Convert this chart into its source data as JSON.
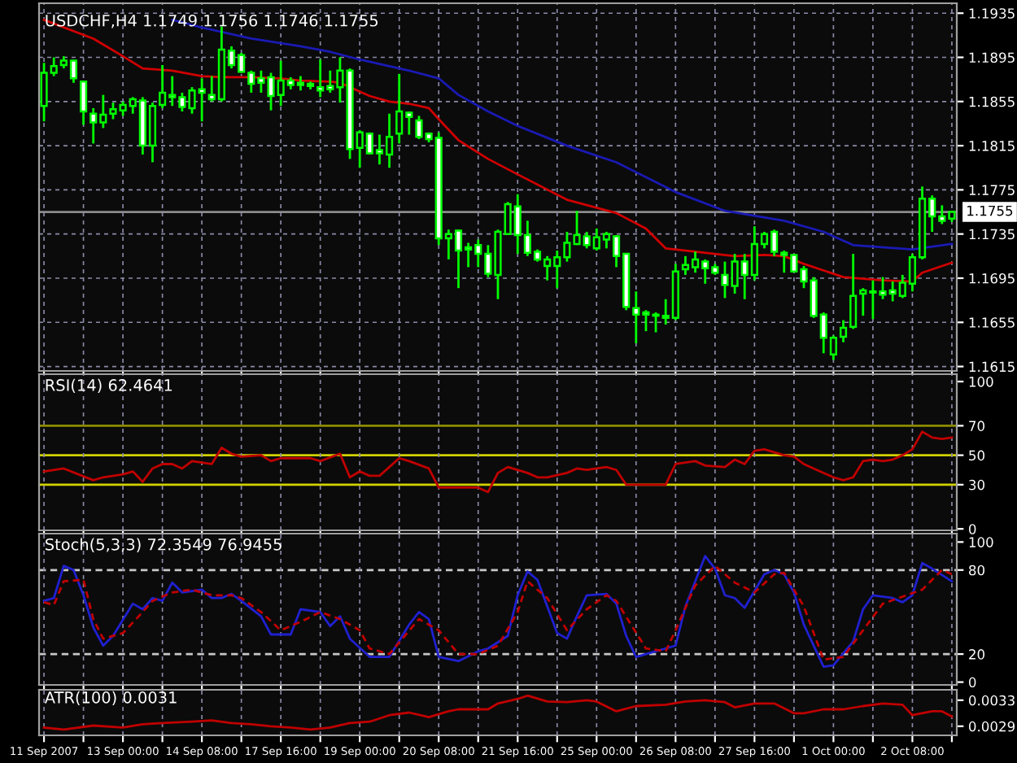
{
  "chart_data": [
    {
      "type": "candlestick",
      "title": "USDCHF,H4 1.1749 1.1756 1.1746 1.1755",
      "color": "#00ff00",
      "ohlc": [
        [
          1.1851,
          1.189,
          1.1837,
          1.1881
        ],
        [
          1.1881,
          1.1895,
          1.1878,
          1.1887
        ],
        [
          1.1888,
          1.1896,
          1.1885,
          1.1892
        ],
        [
          1.1892,
          1.1893,
          1.1872,
          1.1876
        ],
        [
          1.1873,
          1.1873,
          1.1834,
          1.1846
        ],
        [
          1.1844,
          1.1849,
          1.1817,
          1.1836
        ],
        [
          1.1836,
          1.1861,
          1.1831,
          1.1843
        ],
        [
          1.1844,
          1.1854,
          1.1839,
          1.1848
        ],
        [
          1.1847,
          1.1855,
          1.1842,
          1.1852
        ],
        [
          1.1851,
          1.1859,
          1.1844,
          1.1857
        ],
        [
          1.1856,
          1.1859,
          1.1807,
          1.1815
        ],
        [
          1.1815,
          1.1854,
          1.18,
          1.1851
        ],
        [
          1.1852,
          1.1888,
          1.1849,
          1.1863
        ],
        [
          1.1861,
          1.1878,
          1.1851,
          1.1859
        ],
        [
          1.1859,
          1.1863,
          1.1846,
          1.185
        ],
        [
          1.1849,
          1.1868,
          1.1844,
          1.1865
        ],
        [
          1.1866,
          1.1876,
          1.1837,
          1.1863
        ],
        [
          1.1861,
          1.1878,
          1.1855,
          1.1857
        ],
        [
          1.1857,
          1.1923,
          1.1855,
          1.1902
        ],
        [
          1.1901,
          1.1905,
          1.1885,
          1.1888
        ],
        [
          1.1897,
          1.1899,
          1.1881,
          1.1882
        ],
        [
          1.1881,
          1.1883,
          1.1863,
          1.1871
        ],
        [
          1.1876,
          1.1883,
          1.1863,
          1.1872
        ],
        [
          1.1877,
          1.1881,
          1.1847,
          1.186
        ],
        [
          1.1861,
          1.1892,
          1.1851,
          1.1874
        ],
        [
          1.1874,
          1.1877,
          1.1866,
          1.187
        ],
        [
          1.1872,
          1.1878,
          1.1865,
          1.187
        ],
        [
          1.1871,
          1.1873,
          1.1866,
          1.1869
        ],
        [
          1.1868,
          1.1893,
          1.1859,
          1.1865
        ],
        [
          1.1869,
          1.1883,
          1.1863,
          1.1866
        ],
        [
          1.1868,
          1.1895,
          1.1854,
          1.1883
        ],
        [
          1.1883,
          1.1885,
          1.1803,
          1.1812
        ],
        [
          1.1813,
          1.1829,
          1.1795,
          1.1827
        ],
        [
          1.1826,
          1.1827,
          1.1807,
          1.1808
        ],
        [
          1.1811,
          1.1825,
          1.1798,
          1.1808
        ],
        [
          1.1807,
          1.1844,
          1.1795,
          1.1823
        ],
        [
          1.1826,
          1.188,
          1.1817,
          1.1846
        ],
        [
          1.1845,
          1.1846,
          1.1825,
          1.1841
        ],
        [
          1.1838,
          1.1842,
          1.1821,
          1.1823
        ],
        [
          1.1826,
          1.1827,
          1.1818,
          1.1821
        ],
        [
          1.1822,
          1.1827,
          1.1725,
          1.1731
        ],
        [
          1.1731,
          1.1739,
          1.1712,
          1.1735
        ],
        [
          1.1738,
          1.1739,
          1.1686,
          1.172
        ],
        [
          1.1723,
          1.1727,
          1.1705,
          1.1721
        ],
        [
          1.1725,
          1.173,
          1.1705,
          1.1717
        ],
        [
          1.1717,
          1.1725,
          1.1696,
          1.1699
        ],
        [
          1.1698,
          1.1739,
          1.1676,
          1.1737
        ],
        [
          1.1735,
          1.1764,
          1.1734,
          1.1762
        ],
        [
          1.176,
          1.1771,
          1.1717,
          1.1734
        ],
        [
          1.1734,
          1.1747,
          1.1715,
          1.1718
        ],
        [
          1.1719,
          1.1721,
          1.171,
          1.1712
        ],
        [
          1.1706,
          1.1715,
          1.1693,
          1.1712
        ],
        [
          1.1706,
          1.172,
          1.1686,
          1.1714
        ],
        [
          1.1714,
          1.1737,
          1.171,
          1.1727
        ],
        [
          1.1726,
          1.1756,
          1.1725,
          1.1734
        ],
        [
          1.1733,
          1.1737,
          1.1722,
          1.1725
        ],
        [
          1.1722,
          1.174,
          1.172,
          1.1732
        ],
        [
          1.173,
          1.1737,
          1.1722,
          1.1735
        ],
        [
          1.1733,
          1.1734,
          1.1705,
          1.1715
        ],
        [
          1.1717,
          1.1717,
          1.1666,
          1.1669
        ],
        [
          1.1668,
          1.1683,
          1.1636,
          1.1662
        ],
        [
          1.1664,
          1.1666,
          1.1647,
          1.1662
        ],
        [
          1.1662,
          1.1664,
          1.1646,
          1.1661
        ],
        [
          1.1659,
          1.1676,
          1.1653,
          1.1661
        ],
        [
          1.1659,
          1.1708,
          1.1657,
          1.1701
        ],
        [
          1.1703,
          1.1715,
          1.1698,
          1.1707
        ],
        [
          1.1705,
          1.1719,
          1.17,
          1.1712
        ],
        [
          1.171,
          1.1712,
          1.169,
          1.1704
        ],
        [
          1.1705,
          1.1708,
          1.1698,
          1.17
        ],
        [
          1.1698,
          1.171,
          1.1677,
          1.1689
        ],
        [
          1.1688,
          1.1717,
          1.1681,
          1.171
        ],
        [
          1.171,
          1.1717,
          1.1676,
          1.1698
        ],
        [
          1.1698,
          1.1742,
          1.1693,
          1.1726
        ],
        [
          1.1726,
          1.1737,
          1.1722,
          1.1735
        ],
        [
          1.1737,
          1.1739,
          1.1715,
          1.1719
        ],
        [
          1.1718,
          1.172,
          1.17,
          1.1716
        ],
        [
          1.1716,
          1.1717,
          1.17,
          1.1701
        ],
        [
          1.1703,
          1.1706,
          1.1686,
          1.1692
        ],
        [
          1.1693,
          1.1696,
          1.1659,
          1.1661
        ],
        [
          1.1662,
          1.1664,
          1.1627,
          1.1641
        ],
        [
          1.1626,
          1.1643,
          1.1621,
          1.1641
        ],
        [
          1.1642,
          1.1657,
          1.1637,
          1.165
        ],
        [
          1.1651,
          1.1717,
          1.1649,
          1.1679
        ],
        [
          1.1681,
          1.1686,
          1.1661,
          1.1684
        ],
        [
          1.1683,
          1.1693,
          1.1658,
          1.1682
        ],
        [
          1.1683,
          1.1696,
          1.1676,
          1.168
        ],
        [
          1.1684,
          1.1692,
          1.1674,
          1.1681
        ],
        [
          1.1679,
          1.1698,
          1.1677,
          1.1691
        ],
        [
          1.169,
          1.1717,
          1.1683,
          1.1714
        ],
        [
          1.1714,
          1.1778,
          1.1712,
          1.1767
        ],
        [
          1.1767,
          1.177,
          1.1737,
          1.1751
        ],
        [
          1.1751,
          1.1761,
          1.1744,
          1.1747
        ],
        [
          1.1749,
          1.1756,
          1.1746,
          1.1755
        ]
      ],
      "series": [
        {
          "type": "line",
          "color": "#d00000",
          "values": [
            1.1929,
            null,
            null,
            null,
            null,
            1.1912,
            null,
            null,
            1.1896,
            null,
            1.1885,
            null,
            null,
            1.1883,
            null,
            null,
            1.1878,
            null,
            1.1877,
            null,
            null,
            1.1877,
            null,
            null,
            1.1876,
            null,
            1.1874,
            null,
            null,
            1.1873,
            1.1872,
            null,
            null,
            1.186,
            null,
            1.1855,
            null,
            1.1853,
            null,
            1.1849,
            1.1839,
            null,
            1.182,
            null,
            null,
            1.1803,
            null,
            null,
            1.1789,
            null,
            null,
            null,
            null,
            1.1766,
            null,
            null,
            null,
            null,
            1.1754,
            null,
            null,
            1.174,
            null,
            1.1722,
            null,
            null,
            1.1719,
            null,
            null,
            null,
            1.1715,
            null,
            null,
            1.1716,
            null,
            1.1715,
            null,
            1.1708,
            null,
            null,
            null,
            1.1696,
            null,
            null,
            null,
            1.1693,
            null,
            null,
            1.1692,
            1.17,
            null,
            null,
            1.1709
          ]
        },
        {
          "type": "line",
          "color": "#1a1ab4",
          "values": [
            null,
            null,
            null,
            null,
            null,
            null,
            null,
            null,
            null,
            null,
            null,
            null,
            null,
            1.1929,
            null,
            null,
            1.1922,
            null,
            null,
            null,
            null,
            1.1912,
            null,
            null,
            null,
            null,
            1.1905,
            null,
            null,
            1.19,
            null,
            null,
            1.1893,
            null,
            null,
            null,
            null,
            1.1883,
            null,
            null,
            1.1876,
            null,
            1.1861,
            null,
            null,
            1.1846,
            null,
            null,
            1.1833,
            null,
            null,
            null,
            null,
            1.1815,
            null,
            null,
            null,
            null,
            1.18,
            null,
            null,
            null,
            null,
            null,
            1.1773,
            null,
            null,
            null,
            null,
            1.1756,
            null,
            null,
            null,
            null,
            null,
            1.1747,
            null,
            null,
            null,
            1.1737,
            null,
            null,
            1.1725,
            null,
            null,
            null,
            null,
            null,
            1.1721,
            null,
            null,
            null,
            1.1726
          ]
        }
      ],
      "ylim": [
        1.1611,
        1.1944
      ],
      "yticks": [
        1.1615,
        1.1655,
        1.1695,
        1.1735,
        1.1775,
        1.1815,
        1.1855,
        1.1895,
        1.1935
      ],
      "tick_labels": "y",
      "grid": true,
      "ref_lines": [
        {
          "axis": "y",
          "value": 1.1755,
          "label": "1.1755",
          "color": "#8c8c8c"
        }
      ]
    },
    {
      "type": "line",
      "title": "RSI(14) 62.4641",
      "series": [
        {
          "color": "#c00000",
          "values": [
            39,
            null,
            41,
            null,
            null,
            33,
            35,
            null,
            37,
            39,
            32,
            41,
            44,
            44,
            41,
            46,
            45,
            44,
            55,
            51,
            49,
            null,
            50,
            46,
            48,
            48,
            null,
            48,
            46,
            null,
            51,
            35,
            39,
            36,
            36,
            42,
            48,
            46,
            null,
            41,
            28,
            null,
            28,
            null,
            28,
            25,
            38,
            42,
            null,
            38,
            35,
            35,
            null,
            38,
            41,
            40,
            null,
            42,
            40,
            30,
            null,
            null,
            null,
            30,
            44,
            null,
            46,
            43,
            null,
            42,
            47,
            44,
            53,
            54,
            null,
            50,
            49,
            44,
            41,
            null,
            35,
            33,
            35,
            46,
            47,
            46,
            47,
            50,
            54,
            66,
            62,
            61,
            62
          ]
        }
      ],
      "ylim": [
        -1,
        105
      ],
      "yticks": [
        100,
        70,
        50,
        30,
        0
      ],
      "tick_labels": "y",
      "grid": "x",
      "ref_lines": [
        {
          "axis": "y",
          "value": 70,
          "color": "#8c8c00"
        },
        {
          "axis": "y",
          "value": 50,
          "color": "#d2d200"
        },
        {
          "axis": "y",
          "value": 30,
          "color": "#d2d200"
        }
      ]
    },
    {
      "type": "line",
      "title": "Stoch(5,3,3) 72.3549 76.9455",
      "series": [
        {
          "color": "#2020d0",
          "line_style": "solid",
          "values": [
            58,
            60,
            83,
            80,
            62,
            39,
            26,
            33,
            null,
            56,
            52,
            60,
            58,
            71,
            64,
            null,
            66,
            60,
            60,
            63,
            58,
            null,
            47,
            34,
            null,
            34,
            52,
            null,
            50,
            40,
            47,
            31,
            null,
            18,
            null,
            18,
            null,
            41,
            50,
            45,
            18,
            null,
            15,
            null,
            22,
            24,
            null,
            33,
            62,
            79,
            73,
            54,
            35,
            31,
            47,
            62,
            null,
            63,
            56,
            33,
            18,
            null,
            22,
            null,
            26,
            54,
            null,
            90,
            81,
            62,
            60,
            53,
            null,
            77,
            80,
            77,
            64,
            41,
            null,
            11,
            12,
            null,
            29,
            52,
            62,
            null,
            60,
            57,
            62,
            85,
            81,
            null,
            72
          ]
        },
        {
          "color": "#c00000",
          "line_style": "dashed",
          "values": [
            57,
            55,
            72,
            null,
            73,
            45,
            31,
            null,
            35,
            null,
            50,
            58,
            null,
            64,
            null,
            66,
            null,
            62,
            null,
            62,
            60,
            null,
            50,
            null,
            37,
            null,
            43,
            null,
            50,
            null,
            45,
            null,
            37,
            24,
            null,
            20,
            null,
            null,
            45,
            null,
            37,
            null,
            20,
            null,
            20,
            null,
            26,
            null,
            50,
            72,
            null,
            60,
            null,
            37,
            null,
            52,
            null,
            62,
            58,
            null,
            null,
            24,
            null,
            22,
            37,
            null,
            69,
            null,
            83,
            null,
            71,
            null,
            64,
            null,
            77,
            78,
            null,
            54,
            null,
            16,
            null,
            18,
            null,
            37,
            null,
            56,
            null,
            61,
            null,
            66,
            null,
            80,
            77
          ]
        }
      ],
      "ylim": [
        -2,
        106
      ],
      "yticks": [
        100,
        80,
        20,
        0
      ],
      "tick_labels": "y",
      "grid": "x",
      "ref_lines": [
        {
          "axis": "y",
          "value": 80,
          "color": "#c8c8c8",
          "line_style": "dashed"
        },
        {
          "axis": "y",
          "value": 20,
          "color": "#c8c8c8",
          "line_style": "dashed"
        }
      ]
    },
    {
      "type": "line",
      "title": "ATR(100) 0.0031",
      "categories": [
        "11 Sep 2007",
        null,
        null,
        null,
        null,
        null,
        null,
        null,
        "13 Sep 00:00",
        null,
        null,
        null,
        null,
        null,
        null,
        null,
        "14 Sep 08:00",
        null,
        null,
        null,
        null,
        null,
        null,
        null,
        "17 Sep 16:00",
        null,
        null,
        null,
        null,
        null,
        null,
        null,
        "19 Sep 00:00",
        null,
        null,
        null,
        null,
        null,
        null,
        null,
        "20 Sep 08:00",
        null,
        null,
        null,
        null,
        null,
        null,
        null,
        "21 Sep 16:00",
        null,
        null,
        null,
        null,
        null,
        null,
        null,
        "25 Sep 00:00",
        null,
        null,
        null,
        null,
        null,
        null,
        null,
        "26 Sep 08:00",
        null,
        null,
        null,
        null,
        null,
        null,
        null,
        "27 Sep 16:00",
        null,
        null,
        null,
        null,
        null,
        null,
        null,
        "1 Oct 00:00",
        null,
        null,
        null,
        null,
        null,
        null,
        null,
        "2 Oct 08:00",
        null,
        null,
        null,
        null
      ],
      "series": [
        {
          "color": "#c00000",
          "values": [
            0.00288,
            null,
            0.00285,
            null,
            null,
            0.00291,
            null,
            null,
            0.00288,
            null,
            0.00293,
            null,
            0.00295,
            null,
            null,
            0.00297,
            null,
            0.00299,
            null,
            0.00295,
            null,
            0.00293,
            null,
            0.0029,
            null,
            0.00288,
            null,
            0.00285,
            null,
            0.00288,
            null,
            0.00295,
            null,
            0.00297,
            null,
            0.00307,
            null,
            0.00311,
            null,
            0.00304,
            null,
            0.00313,
            0.00316,
            null,
            null,
            0.00316,
            0.00325,
            null,
            0.00332,
            0.00337,
            null,
            0.00328,
            null,
            0.00327,
            null,
            0.0033,
            0.00328,
            null,
            0.00313,
            null,
            0.00321,
            null,
            null,
            0.00323,
            null,
            0.00328,
            null,
            0.0033,
            null,
            0.00327,
            0.00319,
            null,
            0.00325,
            null,
            0.00325,
            null,
            0.0031,
            0.0031,
            null,
            0.00316,
            null,
            0.00316,
            null,
            0.00321,
            null,
            0.00325,
            null,
            0.00323,
            0.00307,
            null,
            0.00313,
            0.00313,
            0.00305
          ]
        }
      ],
      "ylim": [
        0.00276,
        0.00346
      ],
      "yticks": [
        0.0033,
        0.0029
      ],
      "grid": "x"
    }
  ]
}
